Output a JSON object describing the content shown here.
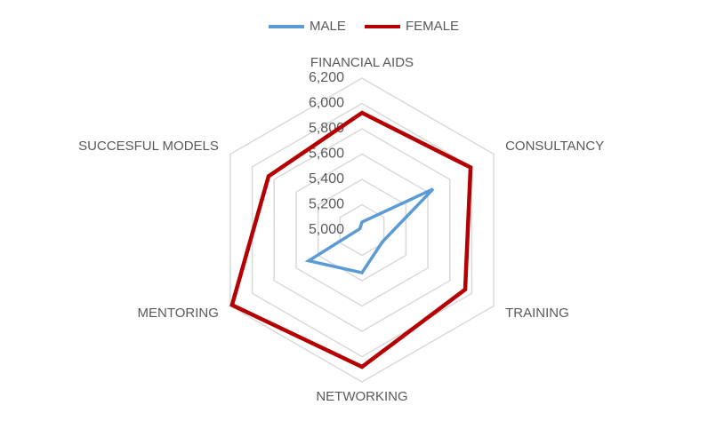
{
  "chart_data": {
    "type": "radar",
    "categories": [
      "FINANCIAL AIDS",
      "CONSULTANCY",
      "TRAINING",
      "NETWORKING",
      "MENTORING",
      "SUCCESFUL MODELS"
    ],
    "series": [
      {
        "name": "MALE",
        "color": "#5b9bd5",
        "values": [
          5063,
          5648,
          5186,
          5337,
          5486,
          5020
        ]
      },
      {
        "name": "FEMALE",
        "color": "#b40000",
        "values": [
          5926,
          5989,
          5940,
          6081,
          6184,
          5851
        ]
      }
    ],
    "ylim": [
      5000,
      6200
    ],
    "yticks": [
      {
        "value": 5000,
        "label": "5,000"
      },
      {
        "value": 5200,
        "label": "5,200"
      },
      {
        "value": 5400,
        "label": "5,400"
      },
      {
        "value": 5600,
        "label": "5,600"
      },
      {
        "value": 5800,
        "label": "5,800"
      },
      {
        "value": 6000,
        "label": "6,000"
      },
      {
        "value": 6200,
        "label": "6,200"
      }
    ],
    "grid": true,
    "legend": "top"
  }
}
